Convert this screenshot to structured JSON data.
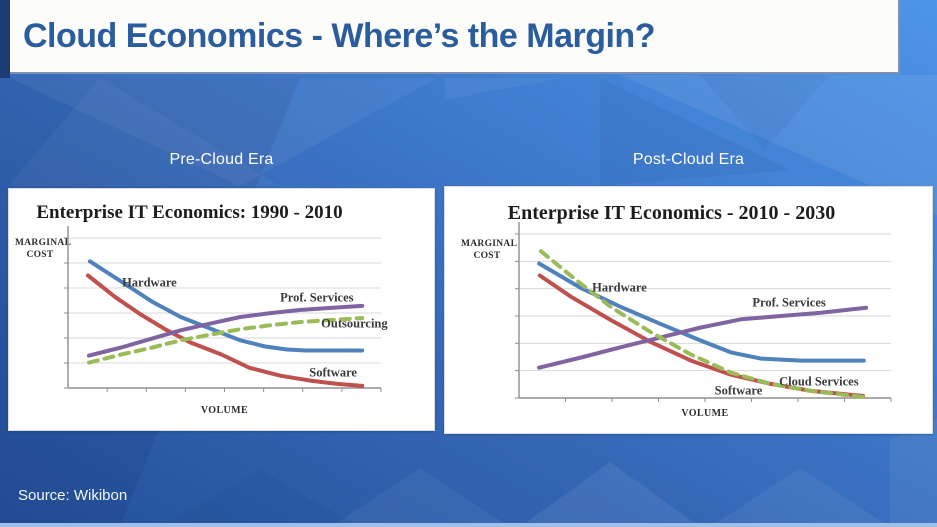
{
  "slide": {
    "title": "Cloud Economics - Where’s the Margin?",
    "source": "Source: Wikibon",
    "columns": {
      "left_label": "Pre-Cloud Era",
      "right_label": "Post-Cloud Era"
    },
    "colors": {
      "title_text": "#2b5c9d",
      "background_light": "#4e94e8",
      "background_dark": "#24509a",
      "edge_navy": "#1d3c74",
      "bottom_strip": "#9dbfe8",
      "card_background": "#ffffff"
    }
  },
  "chart_data": [
    {
      "id": "pre-cloud",
      "type": "line",
      "title": "Enterprise IT Economics: 1990 - 2010",
      "xlabel": "VOLUME",
      "ylabel": "MARGINAL COST",
      "x_axis": {
        "range": [
          0,
          1
        ],
        "tick_count": 8,
        "tick_labels": []
      },
      "y_axis": {
        "range": [
          0,
          1
        ],
        "gridline_intervals": 6,
        "tick_labels": []
      },
      "grid": true,
      "legend": "inline-labels",
      "series": [
        {
          "name": "Hardware",
          "color": "#4f81bd",
          "dashed": false,
          "x": [
            0.07,
            0.17,
            0.27,
            0.36,
            0.46,
            0.55,
            0.63,
            0.7,
            0.76,
            0.94
          ],
          "y": [
            0.845,
            0.71,
            0.574,
            0.473,
            0.392,
            0.318,
            0.277,
            0.257,
            0.25,
            0.25
          ],
          "label_pos": {
            "x": 0.26,
            "y": 0.3
          }
        },
        {
          "name": "Software",
          "color": "#c0504d",
          "dashed": false,
          "x": [
            0.064,
            0.15,
            0.23,
            0.31,
            0.39,
            0.49,
            0.58,
            0.68,
            0.78,
            0.86,
            0.94
          ],
          "y": [
            0.75,
            0.608,
            0.493,
            0.392,
            0.304,
            0.223,
            0.135,
            0.081,
            0.047,
            0.027,
            0.014
          ],
          "label_pos": {
            "x": 0.847,
            "y": 0.9
          }
        },
        {
          "name": "Prof. Services",
          "color": "#8064a2",
          "dashed": false,
          "x": [
            0.067,
            0.17,
            0.27,
            0.36,
            0.46,
            0.55,
            0.65,
            0.74,
            0.84,
            0.94
          ],
          "y": [
            0.216,
            0.27,
            0.331,
            0.385,
            0.432,
            0.473,
            0.5,
            0.52,
            0.534,
            0.547
          ],
          "label_pos": {
            "x": 0.795,
            "y": 0.4
          }
        },
        {
          "name": "Outsourcing",
          "color": "#9bbb59",
          "dashed": true,
          "x": [
            0.067,
            0.17,
            0.27,
            0.36,
            0.46,
            0.55,
            0.65,
            0.74,
            0.84,
            0.94
          ],
          "y": [
            0.169,
            0.223,
            0.27,
            0.318,
            0.358,
            0.392,
            0.419,
            0.439,
            0.453,
            0.466
          ],
          "label_pos": {
            "x": 0.915,
            "y": 0.57
          }
        }
      ]
    },
    {
      "id": "post-cloud",
      "type": "line",
      "title": "Enterprise IT Economics - 2010 - 2030",
      "xlabel": "VOLUME",
      "ylabel": "MARGINAL COST",
      "x_axis": {
        "range": [
          0,
          1
        ],
        "tick_count": 8,
        "tick_labels": []
      },
      "y_axis": {
        "range": [
          0,
          1
        ],
        "gridline_intervals": 6,
        "tick_labels": []
      },
      "grid": true,
      "legend": "inline-labels",
      "series": [
        {
          "name": "Hardware",
          "color": "#4f81bd",
          "dashed": false,
          "x": [
            0.054,
            0.167,
            0.274,
            0.382,
            0.489,
            0.57,
            0.65,
            0.758,
            0.927
          ],
          "y": [
            0.82,
            0.67,
            0.555,
            0.45,
            0.35,
            0.278,
            0.24,
            0.228,
            0.228
          ],
          "label_pos": {
            "x": 0.27,
            "y": 0.33
          }
        },
        {
          "name": "Software",
          "color": "#c0504d",
          "dashed": false,
          "x": [
            0.056,
            0.14,
            0.247,
            0.355,
            0.462,
            0.57,
            0.677,
            0.785,
            0.925
          ],
          "y": [
            0.747,
            0.617,
            0.475,
            0.34,
            0.228,
            0.142,
            0.086,
            0.043,
            0.012
          ],
          "label_pos": {
            "x": 0.59,
            "y": 0.955
          }
        },
        {
          "name": "Prof. Services",
          "color": "#8064a2",
          "dashed": false,
          "x": [
            0.054,
            0.167,
            0.274,
            0.382,
            0.489,
            0.597,
            0.704,
            0.812,
            0.933
          ],
          "y": [
            0.185,
            0.247,
            0.31,
            0.37,
            0.43,
            0.48,
            0.5,
            0.52,
            0.55
          ],
          "label_pos": {
            "x": 0.726,
            "y": 0.42
          }
        },
        {
          "name": "Cloud Services",
          "color": "#9bbb59",
          "dashed": true,
          "x": [
            0.059,
            0.153,
            0.247,
            0.355,
            0.462,
            0.57,
            0.677,
            0.785,
            0.925
          ],
          "y": [
            0.895,
            0.72,
            0.555,
            0.4,
            0.265,
            0.154,
            0.086,
            0.043,
            0.006
          ],
          "label_pos": {
            "x": 0.806,
            "y": 0.905
          }
        }
      ]
    }
  ]
}
